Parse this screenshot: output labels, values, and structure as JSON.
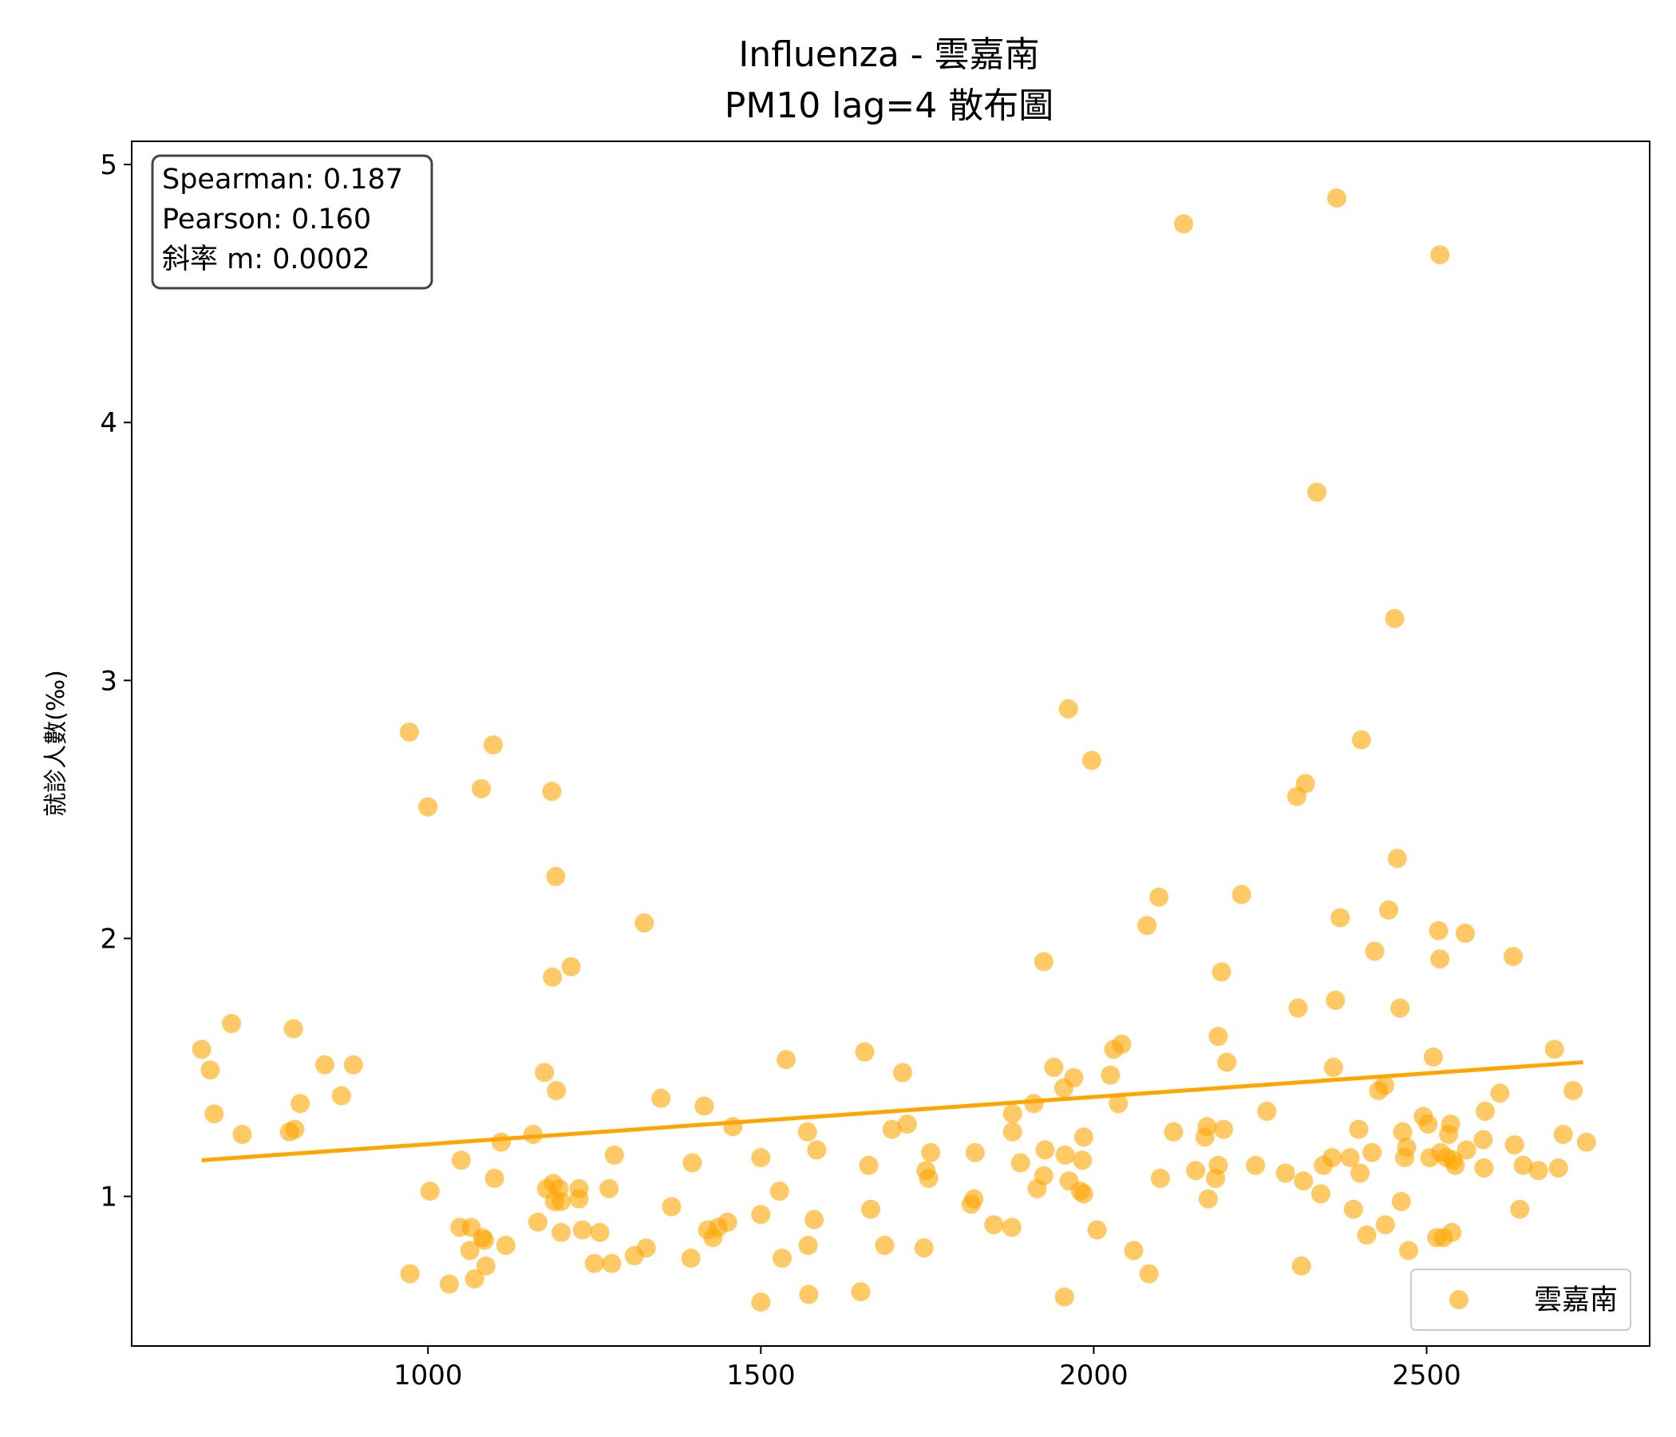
{
  "chart_data": {
    "type": "scatter",
    "title": "Influenza - 雲嘉南",
    "subtitle": "PM10 lag=4 散布圖",
    "xlabel": "",
    "ylabel": "就診人數(‰)",
    "xlim": [
      555,
      2835
    ],
    "ylim": [
      0.42,
      5.09
    ],
    "xticks": [
      1000,
      1500,
      2000,
      2500
    ],
    "yticks": [
      1,
      2,
      3,
      4,
      5
    ],
    "grid": false,
    "legend_position": "bottom-right",
    "stats": {
      "spearman": "Spearman: 0.187",
      "pearson": "Pearson: 0.160",
      "slope": "斜率 m: 0.0002"
    },
    "colors": {
      "points": "#FFA500",
      "line": "#FFA500"
    },
    "fit_line": {
      "x": [
        660,
        2735
      ],
      "y": [
        1.14,
        1.52
      ]
    },
    "series": [
      {
        "name": "雲嘉南",
        "points": [
          [
            660,
            1.57
          ],
          [
            673,
            1.49
          ],
          [
            679,
            1.32
          ],
          [
            705,
            1.67
          ],
          [
            721,
            1.24
          ],
          [
            792,
            1.25
          ],
          [
            798,
            1.65
          ],
          [
            800,
            1.26
          ],
          [
            808,
            1.36
          ],
          [
            845,
            1.51
          ],
          [
            870,
            1.39
          ],
          [
            888,
            1.51
          ],
          [
            972,
            2.8
          ],
          [
            973,
            0.7
          ],
          [
            1000,
            2.51
          ],
          [
            1003,
            1.02
          ],
          [
            1032,
            0.66
          ],
          [
            1048,
            0.88
          ],
          [
            1050,
            1.14
          ],
          [
            1063,
            0.79
          ],
          [
            1065,
            0.88
          ],
          [
            1070,
            0.68
          ],
          [
            1080,
            2.58
          ],
          [
            1082,
            0.84
          ],
          [
            1085,
            0.83
          ],
          [
            1087,
            0.73
          ],
          [
            1098,
            2.75
          ],
          [
            1100,
            1.07
          ],
          [
            1110,
            1.21
          ],
          [
            1117,
            0.81
          ],
          [
            1158,
            1.24
          ],
          [
            1165,
            0.9
          ],
          [
            1175,
            1.48
          ],
          [
            1178,
            1.03
          ],
          [
            1186,
            2.57
          ],
          [
            1187,
            1.85
          ],
          [
            1188,
            1.05
          ],
          [
            1190,
            0.98
          ],
          [
            1192,
            2.24
          ],
          [
            1193,
            1.41
          ],
          [
            1197,
            1.03
          ],
          [
            1200,
            0.98
          ],
          [
            1200,
            0.86
          ],
          [
            1215,
            1.89
          ],
          [
            1227,
            1.03
          ],
          [
            1227,
            0.99
          ],
          [
            1232,
            0.87
          ],
          [
            1250,
            0.74
          ],
          [
            1258,
            0.86
          ],
          [
            1272,
            1.03
          ],
          [
            1276,
            0.74
          ],
          [
            1280,
            1.16
          ],
          [
            1310,
            0.77
          ],
          [
            1325,
            2.06
          ],
          [
            1328,
            0.8
          ],
          [
            1350,
            1.38
          ],
          [
            1366,
            0.96
          ],
          [
            1395,
            0.76
          ],
          [
            1397,
            1.13
          ],
          [
            1415,
            1.35
          ],
          [
            1420,
            0.87
          ],
          [
            1428,
            0.84
          ],
          [
            1436,
            0.88
          ],
          [
            1450,
            0.9
          ],
          [
            1458,
            1.27
          ],
          [
            1500,
            1.15
          ],
          [
            1500,
            0.93
          ],
          [
            1500,
            0.59
          ],
          [
            1528,
            1.02
          ],
          [
            1532,
            0.76
          ],
          [
            1538,
            1.53
          ],
          [
            1570,
            1.25
          ],
          [
            1571,
            0.81
          ],
          [
            1572,
            0.62
          ],
          [
            1580,
            0.91
          ],
          [
            1584,
            1.18
          ],
          [
            1650,
            0.63
          ],
          [
            1656,
            1.56
          ],
          [
            1662,
            1.12
          ],
          [
            1665,
            0.95
          ],
          [
            1686,
            0.81
          ],
          [
            1697,
            1.26
          ],
          [
            1713,
            1.48
          ],
          [
            1720,
            1.28
          ],
          [
            1745,
            0.8
          ],
          [
            1748,
            1.1
          ],
          [
            1752,
            1.07
          ],
          [
            1755,
            1.17
          ],
          [
            1816,
            0.97
          ],
          [
            1820,
            0.99
          ],
          [
            1822,
            1.17
          ],
          [
            1850,
            0.89
          ],
          [
            1877,
            0.88
          ],
          [
            1878,
            1.25
          ],
          [
            1878,
            1.32
          ],
          [
            1890,
            1.13
          ],
          [
            1910,
            1.36
          ],
          [
            1915,
            1.03
          ],
          [
            1925,
            1.91
          ],
          [
            1925,
            1.08
          ],
          [
            1927,
            1.18
          ],
          [
            1940,
            1.5
          ],
          [
            1955,
            1.42
          ],
          [
            1956,
            0.61
          ],
          [
            1957,
            1.16
          ],
          [
            1962,
            2.89
          ],
          [
            1963,
            1.06
          ],
          [
            1970,
            1.46
          ],
          [
            1980,
            1.02
          ],
          [
            1983,
            1.14
          ],
          [
            1985,
            1.01
          ],
          [
            1985,
            1.23
          ],
          [
            1997,
            2.69
          ],
          [
            2005,
            0.87
          ],
          [
            2025,
            1.47
          ],
          [
            2030,
            1.57
          ],
          [
            2037,
            1.36
          ],
          [
            2042,
            1.59
          ],
          [
            2060,
            0.79
          ],
          [
            2080,
            2.05
          ],
          [
            2083,
            0.7
          ],
          [
            2098,
            2.16
          ],
          [
            2100,
            1.07
          ],
          [
            2120,
            1.25
          ],
          [
            2135,
            4.77
          ],
          [
            2153,
            1.1
          ],
          [
            2167,
            1.23
          ],
          [
            2170,
            1.27
          ],
          [
            2172,
            0.99
          ],
          [
            2183,
            1.07
          ],
          [
            2187,
            1.12
          ],
          [
            2187,
            1.62
          ],
          [
            2192,
            1.87
          ],
          [
            2195,
            1.26
          ],
          [
            2200,
            1.52
          ],
          [
            2222,
            2.17
          ],
          [
            2243,
            1.12
          ],
          [
            2260,
            1.33
          ],
          [
            2288,
            1.09
          ],
          [
            2305,
            2.55
          ],
          [
            2307,
            1.73
          ],
          [
            2312,
            0.73
          ],
          [
            2315,
            1.06
          ],
          [
            2318,
            2.6
          ],
          [
            2335,
            3.73
          ],
          [
            2341,
            1.01
          ],
          [
            2345,
            1.12
          ],
          [
            2358,
            1.15
          ],
          [
            2360,
            1.5
          ],
          [
            2363,
            1.76
          ],
          [
            2365,
            4.87
          ],
          [
            2370,
            2.08
          ],
          [
            2385,
            1.15
          ],
          [
            2390,
            0.95
          ],
          [
            2398,
            1.26
          ],
          [
            2400,
            1.09
          ],
          [
            2402,
            2.77
          ],
          [
            2410,
            0.85
          ],
          [
            2418,
            1.17
          ],
          [
            2422,
            1.95
          ],
          [
            2428,
            1.41
          ],
          [
            2437,
            1.43
          ],
          [
            2438,
            0.89
          ],
          [
            2443,
            2.11
          ],
          [
            2452,
            3.24
          ],
          [
            2456,
            2.31
          ],
          [
            2460,
            1.73
          ],
          [
            2462,
            0.98
          ],
          [
            2464,
            1.25
          ],
          [
            2467,
            1.15
          ],
          [
            2470,
            1.19
          ],
          [
            2473,
            0.79
          ],
          [
            2495,
            1.31
          ],
          [
            2502,
            1.28
          ],
          [
            2505,
            1.15
          ],
          [
            2510,
            1.54
          ],
          [
            2515,
            0.84
          ],
          [
            2518,
            2.03
          ],
          [
            2520,
            1.92
          ],
          [
            2520,
            4.65
          ],
          [
            2521,
            1.17
          ],
          [
            2525,
            0.84
          ],
          [
            2530,
            1.15
          ],
          [
            2533,
            1.24
          ],
          [
            2536,
            1.28
          ],
          [
            2538,
            0.86
          ],
          [
            2540,
            1.14
          ],
          [
            2543,
            1.12
          ],
          [
            2558,
            2.02
          ],
          [
            2560,
            1.18
          ],
          [
            2585,
            1.22
          ],
          [
            2586,
            1.11
          ],
          [
            2588,
            1.33
          ],
          [
            2610,
            1.4
          ],
          [
            2630,
            1.93
          ],
          [
            2632,
            1.2
          ],
          [
            2640,
            0.95
          ],
          [
            2645,
            1.12
          ],
          [
            2668,
            1.1
          ],
          [
            2692,
            1.57
          ],
          [
            2698,
            1.11
          ],
          [
            2705,
            1.24
          ],
          [
            2720,
            1.41
          ],
          [
            2740,
            1.21
          ]
        ]
      }
    ]
  }
}
